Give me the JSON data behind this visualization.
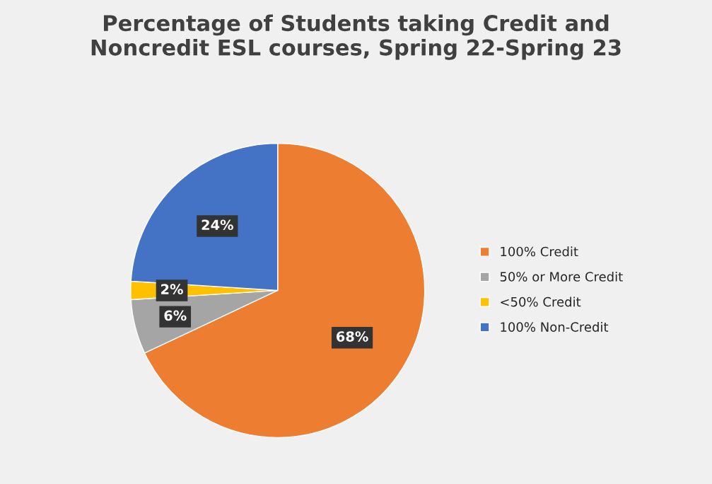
{
  "chart_data": {
    "type": "pie",
    "title": "Percentage of Students taking Credit and\nNoncredit ESL courses, Spring 22-Spring 23",
    "categories": [
      "100% Credit",
      "50% or More Credit",
      "<50% Credit",
      "100% Non-Credit"
    ],
    "values": [
      68,
      6,
      2,
      24
    ],
    "colors": [
      "#ed7d31",
      "#a5a5a5",
      "#ffc000",
      "#4472c4"
    ],
    "value_labels": [
      "68%",
      "6%",
      "2%",
      "24%"
    ],
    "legend": "right"
  }
}
